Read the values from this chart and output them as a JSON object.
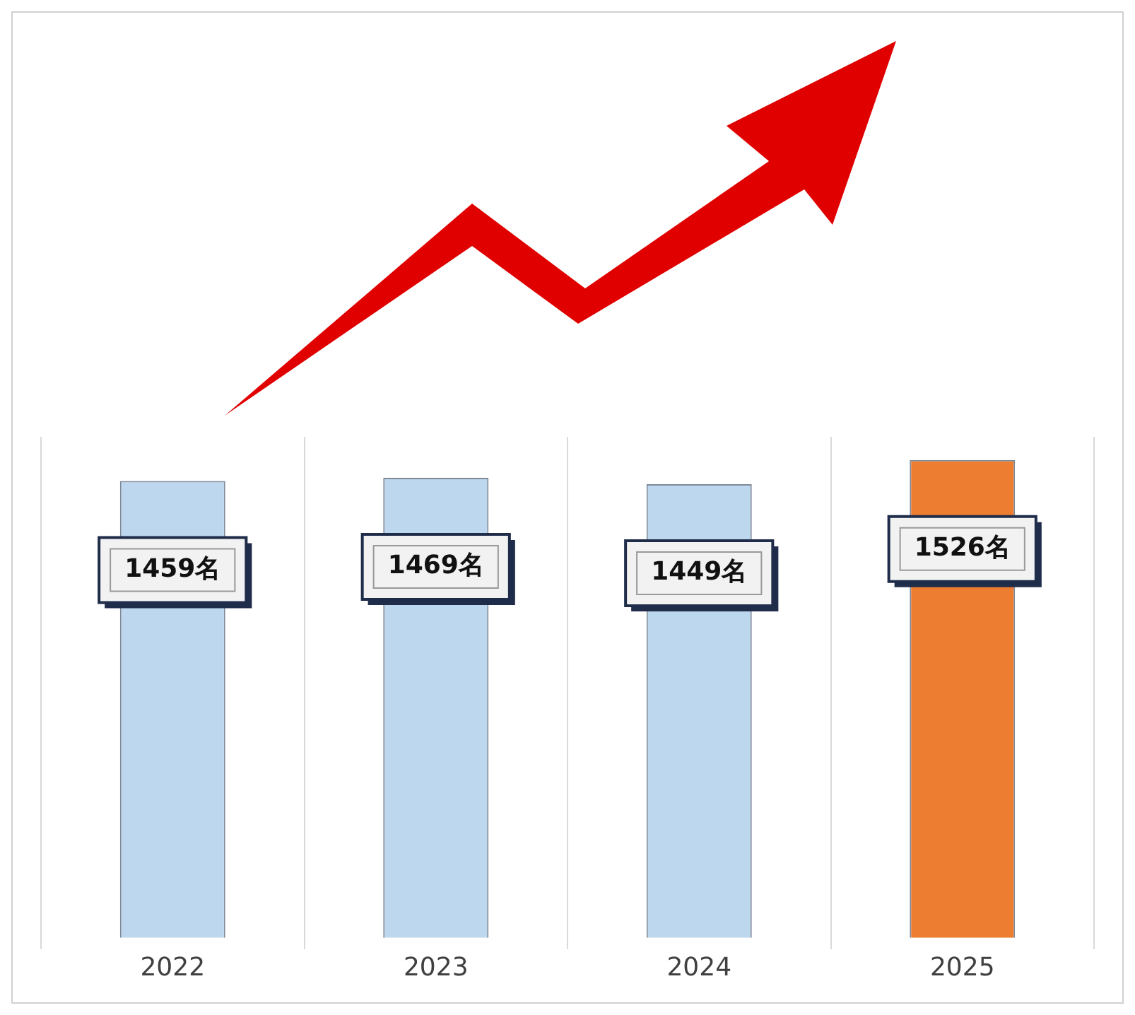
{
  "chart_data": {
    "type": "bar",
    "categories": [
      "2022",
      "2023",
      "2024",
      "2025"
    ],
    "values": [
      1459,
      1469,
      1449,
      1526
    ],
    "colors": [
      "#bdd7ee",
      "#bdd7ee",
      "#bdd7ee",
      "#ed7d31"
    ],
    "value_labels": [
      "1459名",
      "1469名",
      "1449名",
      "1526名"
    ],
    "grid": "x",
    "legend": false
  }
}
